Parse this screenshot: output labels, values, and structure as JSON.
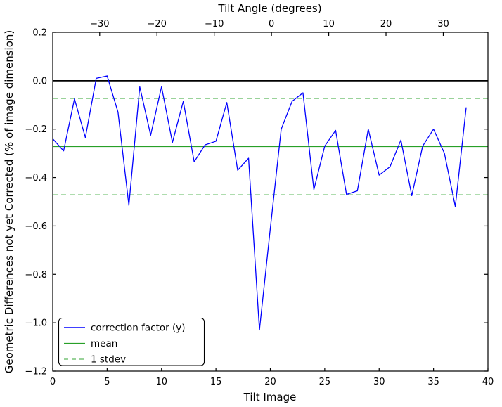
{
  "chart_data": {
    "type": "line",
    "top_axis_label": "Tilt Angle (degrees)",
    "bottom_axis_label": "Tilt Image",
    "y_axis_label": "Geometric Differences not yet Corrected (% of image dimension)",
    "xlim": [
      0,
      40
    ],
    "ylim": [
      -1.2,
      0.2
    ],
    "top_xlim": [
      -38.2,
      37.8
    ],
    "bottom_ticks": {
      "values": [
        0,
        5,
        10,
        15,
        20,
        25,
        30,
        35,
        40
      ],
      "labels": [
        "0",
        "5",
        "10",
        "15",
        "20",
        "25",
        "30",
        "35",
        "40"
      ]
    },
    "top_ticks": {
      "values": [
        -30,
        -20,
        -10,
        0,
        10,
        20,
        30
      ],
      "labels": [
        "−30",
        "−20",
        "−10",
        "0",
        "10",
        "20",
        "30"
      ]
    },
    "y_ticks": {
      "values": [
        0.2,
        0.0,
        -0.2,
        -0.4,
        -0.6,
        -0.8,
        -1.0,
        -1.2
      ],
      "labels": [
        "0.2",
        "0.0",
        "−0.2",
        "−0.4",
        "−0.6",
        "−0.8",
        "−1.0",
        "−1.2"
      ]
    },
    "series": {
      "correction_factor": {
        "name": "correction factor (y)",
        "color": "#0000ff",
        "x": [
          0,
          1,
          2,
          3,
          4,
          5,
          6,
          7,
          8,
          9,
          10,
          11,
          12,
          13,
          14,
          15,
          16,
          17,
          18,
          19,
          20,
          21,
          22,
          23,
          24,
          25,
          26,
          27,
          28,
          29,
          30,
          31,
          32,
          33,
          34,
          35,
          36,
          37,
          38
        ],
        "y": [
          -0.24,
          -0.29,
          -0.075,
          -0.235,
          0.01,
          0.02,
          -0.13,
          -0.515,
          -0.025,
          -0.225,
          -0.025,
          -0.255,
          -0.085,
          -0.335,
          -0.265,
          -0.25,
          -0.09,
          -0.37,
          -0.32,
          -1.03,
          -0.61,
          -0.2,
          -0.085,
          -0.05,
          -0.45,
          -0.27,
          -0.205,
          -0.47,
          -0.455,
          -0.2,
          -0.39,
          -0.355,
          -0.245,
          -0.475,
          -0.27,
          -0.2,
          -0.3,
          -0.52,
          -0.11
        ]
      },
      "mean": {
        "name": "mean",
        "color": "#28a028",
        "value": -0.272
      },
      "stdev": {
        "name": "1 stdev",
        "color": "#5cb85c",
        "values": [
          -0.073,
          -0.471
        ]
      }
    },
    "zero_line": {
      "color": "#000000",
      "value": 0.0
    },
    "legend": {
      "position": "lower left",
      "entries": [
        {
          "label": "correction factor (y)",
          "color": "#0000ff",
          "style": "solid"
        },
        {
          "label": "mean",
          "color": "#28a028",
          "style": "solid"
        },
        {
          "label": "1 stdev",
          "color": "#5cb85c",
          "style": "dashed"
        }
      ]
    }
  }
}
